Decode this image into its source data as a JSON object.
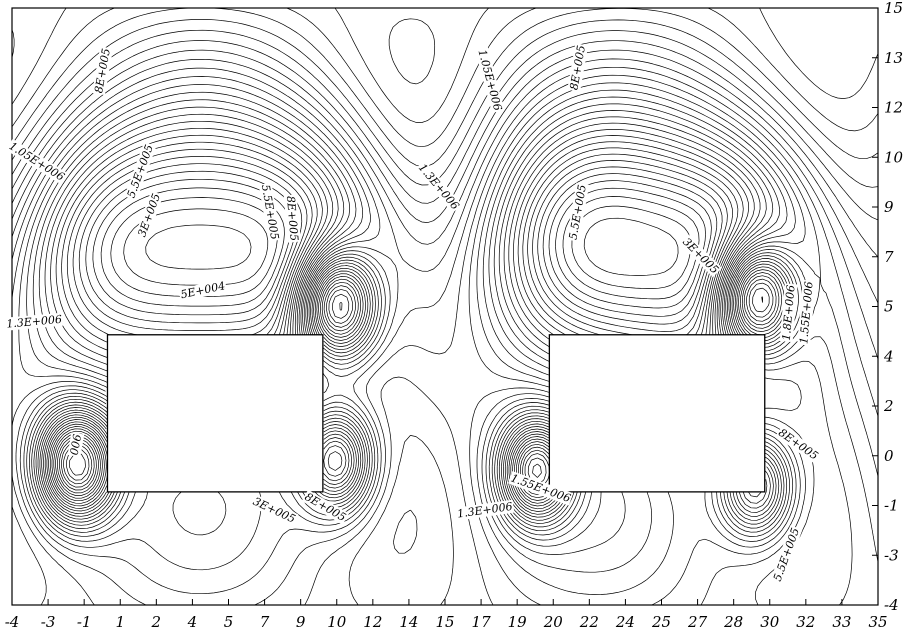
{
  "chart_data": {
    "type": "contour",
    "title": "",
    "xlabel": "",
    "ylabel": "",
    "x_ticks": [
      "-4",
      "-3",
      "-1",
      "1",
      "2",
      "4",
      "5",
      "7",
      "9",
      "10",
      "12",
      "14",
      "15",
      "17",
      "19",
      "20",
      "22",
      "24",
      "25",
      "27",
      "28",
      "30",
      "32",
      "33",
      "35"
    ],
    "y_ticks": [
      "15",
      "13",
      "12",
      "10",
      "9",
      "7",
      "5",
      "4",
      "2",
      "0",
      "-1",
      "-3",
      "-4"
    ],
    "xlim": [
      -4,
      35
    ],
    "ylim": [
      -4,
      15
    ],
    "grid": false,
    "obstacles": [
      {
        "x": [
          0.3,
          10.0
        ],
        "y": [
          -0.4,
          4.6
        ]
      },
      {
        "x": [
          20.2,
          29.9
        ],
        "y": [
          -0.4,
          4.6
        ]
      }
    ],
    "contour_labels": [
      {
        "text": "8E+005",
        "x": 0.1,
        "y": 13.0,
        "angle": -80
      },
      {
        "text": "1.05E+006",
        "x": -2.9,
        "y": 10.1,
        "angle": 32
      },
      {
        "text": "5.5E+005",
        "x": 1.8,
        "y": 9.8,
        "angle": -70
      },
      {
        "text": "3E+005",
        "x": 2.2,
        "y": 8.4,
        "angle": -70
      },
      {
        "text": "5E+004",
        "x": 4.6,
        "y": 6.0,
        "angle": -12
      },
      {
        "text": "1.3E+006",
        "x": -3.0,
        "y": 5.0,
        "angle": -5
      },
      {
        "text": "5.5E+005",
        "x": 7.6,
        "y": 8.5,
        "angle": 80
      },
      {
        "text": "8E+005",
        "x": 8.6,
        "y": 8.3,
        "angle": 85
      },
      {
        "text": "1.05E+006",
        "x": 17.5,
        "y": 12.7,
        "angle": 75
      },
      {
        "text": "1.3E+006",
        "x": 15.2,
        "y": 9.3,
        "angle": 50
      },
      {
        "text": "8E+005",
        "x": 21.5,
        "y": 13.1,
        "angle": -80
      },
      {
        "text": "5.5E+005",
        "x": 21.5,
        "y": 8.5,
        "angle": -80
      },
      {
        "text": "3E+005",
        "x": 27.0,
        "y": 7.1,
        "angle": 45
      },
      {
        "text": "1.8E+006",
        "x": 31.0,
        "y": 5.3,
        "angle": -85
      },
      {
        "text": "1.55E+006",
        "x": 31.8,
        "y": 5.3,
        "angle": -85
      },
      {
        "text": "8E+005",
        "x": 31.4,
        "y": 1.1,
        "angle": 35
      },
      {
        "text": "5.5E+005",
        "x": 30.9,
        "y": -2.4,
        "angle": -70
      },
      {
        "text": "1.3E+006",
        "x": 17.3,
        "y": -1.0,
        "angle": -8
      },
      {
        "text": "1.55E+006",
        "x": 19.8,
        "y": -0.3,
        "angle": 20
      },
      {
        "text": "8E+005",
        "x": 10.1,
        "y": -0.9,
        "angle": 30
      },
      {
        "text": "3E+005",
        "x": 7.8,
        "y": -1.0,
        "angle": 25
      },
      {
        "text": "006",
        "x": -1.1,
        "y": 1.1,
        "angle": -80
      }
    ]
  }
}
